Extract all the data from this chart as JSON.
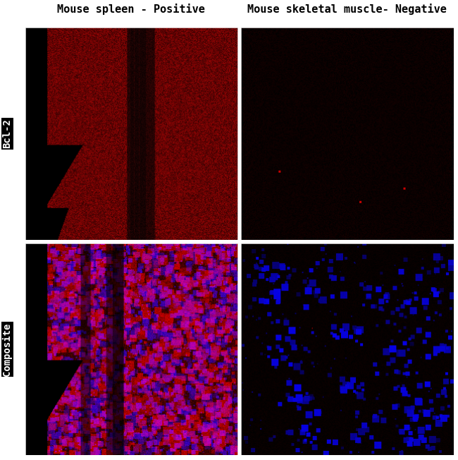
{
  "title_top_left": "Mouse spleen - Positive",
  "title_top_right": "Mouse skeletal muscle- Negative",
  "label_row1": "Bcl-2",
  "label_row2": "Composite",
  "bg_color": "#000000",
  "fig_bg": "#ffffff",
  "title_fontsize": 11,
  "label_fontsize": 10,
  "seed": 42
}
